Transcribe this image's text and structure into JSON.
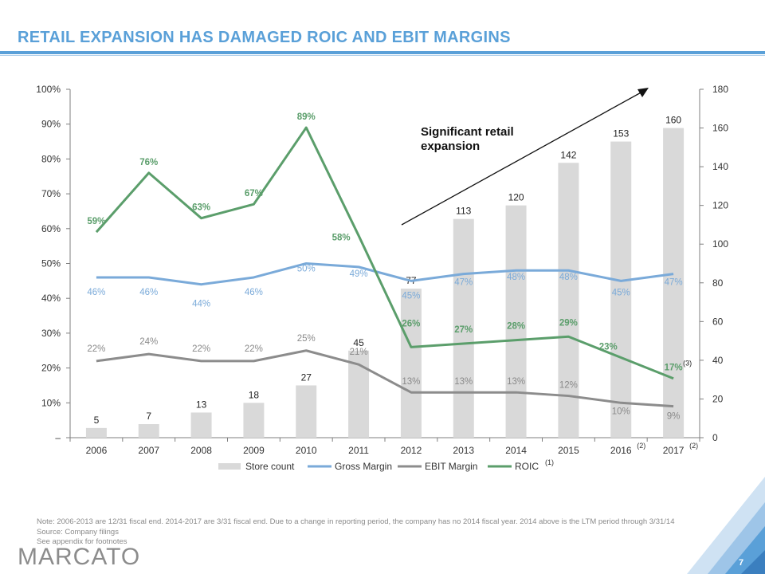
{
  "title": "RETAIL EXPANSION HAS DAMAGED ROIC AND EBIT MARGINS",
  "annotation": "Significant retail\nexpansion",
  "notes": [
    "Note: 2006-2013 are 12/31 fiscal end. 2014-2017 are 3/31 fiscal end. Due to a change in reporting period, the company has no 2014 fiscal year. 2014 above is the LTM period through 3/31/14",
    "Source: Company filings",
    "See appendix for footnotes"
  ],
  "logo": "MARCATO",
  "page_number": "7",
  "colors": {
    "title": "#5aa0d8",
    "store_bar": "#d9d9d9",
    "gross_margin": "#7aaad9",
    "ebit_margin": "#8c8c8c",
    "roic": "#5b9e6b"
  },
  "chart_data": {
    "type": "bar+line",
    "categories": [
      "2006",
      "2007",
      "2008",
      "2009",
      "2010",
      "2011",
      "2012",
      "2013",
      "2014",
      "2015",
      "2016",
      "2017"
    ],
    "category_superscripts": [
      "",
      "",
      "",
      "",
      "",
      "",
      "",
      "",
      "",
      "",
      "(2)",
      "(2)"
    ],
    "y_left": {
      "ticks": [
        "–",
        "10%",
        "20%",
        "30%",
        "40%",
        "50%",
        "60%",
        "70%",
        "80%",
        "90%",
        "100%"
      ],
      "range": [
        0,
        100
      ]
    },
    "y_right": {
      "ticks": [
        "0",
        "20",
        "40",
        "60",
        "80",
        "100",
        "120",
        "140",
        "160",
        "180"
      ],
      "range": [
        0,
        180
      ]
    },
    "series": [
      {
        "name": "Store count",
        "kind": "bar",
        "axis": "right",
        "values": [
          5,
          7,
          13,
          18,
          27,
          45,
          77,
          113,
          120,
          142,
          153,
          160
        ],
        "labels": [
          "5",
          "7",
          "13",
          "18",
          "27",
          "45",
          "77",
          "113",
          "120",
          "142",
          "153",
          "160"
        ]
      },
      {
        "name": "Gross Margin",
        "kind": "line",
        "axis": "left",
        "values": [
          46,
          46,
          44,
          46,
          50,
          49,
          45,
          47,
          48,
          48,
          45,
          47
        ],
        "labels": [
          "46%",
          "46%",
          "44%",
          "46%",
          "50%",
          "49%",
          "45%",
          "47%",
          "48%",
          "48%",
          "45%",
          "47%"
        ]
      },
      {
        "name": "EBIT Margin",
        "kind": "line",
        "axis": "left",
        "values": [
          22,
          24,
          22,
          22,
          25,
          21,
          13,
          13,
          13,
          12,
          10,
          9
        ],
        "labels": [
          "22%",
          "24%",
          "22%",
          "22%",
          "25%",
          "21%",
          "13%",
          "13%",
          "13%",
          "12%",
          "10%",
          "9%"
        ]
      },
      {
        "name": "ROIC",
        "name_superscript": "(1)",
        "kind": "line",
        "axis": "left",
        "values": [
          59,
          76,
          63,
          67,
          89,
          58,
          26,
          27,
          28,
          29,
          23,
          17
        ],
        "labels": [
          "59%",
          "76%",
          "63%",
          "67%",
          "89%",
          "58%",
          "26%",
          "27%",
          "28%",
          "29%",
          "23%",
          "17%"
        ],
        "last_label_superscript": "(3)"
      }
    ],
    "legend_position": "bottom",
    "grid": false
  }
}
